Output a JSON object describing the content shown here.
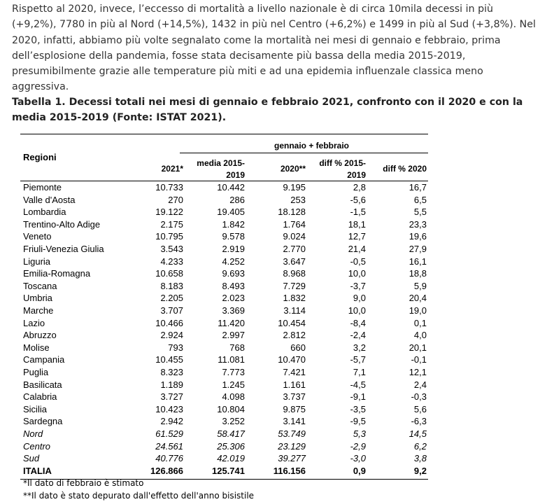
{
  "paragraph": "Rispetto al 2020, invece, l’eccesso di mortalità a livello nazionale è di circa 10mila decessi in più (+9,2%), 7780 in più al Nord (+14,5%), 1432 in più nel Centro (+6,2%) e 1499 in più al Sud (+3,8%). Nel 2020, infatti, abbiamo più volte segnalato come la mortalità nei mesi di gennaio e febbraio, prima dell’esplosione della pandemia, fosse stata decisamente più bassa della media 2015-2019, presumibilmente grazie alle temperature più miti e ad una epidemia influenzale classica meno aggressiva.",
  "caption": "Tabella 1. Decessi totali nei mesi di gennaio e febbraio 2021, confronto con il 2020 e con la media 2015-2019 (Fonte: ISTAT 2021).",
  "table": {
    "group_header": "gennaio + febbraio",
    "header": [
      "Regioni",
      "2021*",
      "media 2015-2019",
      "2020**",
      "diff % 2015-2019",
      "diff % 2020"
    ],
    "rows": [
      [
        "Piemonte",
        "10.733",
        "10.442",
        "9.195",
        "2,8",
        "16,7"
      ],
      [
        "Valle d'Aosta",
        "270",
        "286",
        "253",
        "-5,6",
        "6,5"
      ],
      [
        "Lombardia",
        "19.122",
        "19.405",
        "18.128",
        "-1,5",
        "5,5"
      ],
      [
        "Trentino-Alto Adige",
        "2.175",
        "1.842",
        "1.764",
        "18,1",
        "23,3"
      ],
      [
        "Veneto",
        "10.795",
        "9.578",
        "9.024",
        "12,7",
        "19,6"
      ],
      [
        "Friuli-Venezia Giulia",
        "3.543",
        "2.919",
        "2.770",
        "21,4",
        "27,9"
      ],
      [
        "Liguria",
        "4.233",
        "4.252",
        "3.647",
        "-0,5",
        "16,1"
      ],
      [
        "Emilia-Romagna",
        "10.658",
        "9.693",
        "8.968",
        "10,0",
        "18,8"
      ],
      [
        "Toscana",
        "8.183",
        "8.493",
        "7.729",
        "-3,7",
        "5,9"
      ],
      [
        "Umbria",
        "2.205",
        "2.023",
        "1.832",
        "9,0",
        "20,4"
      ],
      [
        "Marche",
        "3.707",
        "3.369",
        "3.114",
        "10,0",
        "19,0"
      ],
      [
        "Lazio",
        "10.466",
        "11.420",
        "10.454",
        "-8,4",
        "0,1"
      ],
      [
        "Abruzzo",
        "2.924",
        "2.997",
        "2.812",
        "-2,4",
        "4,0"
      ],
      [
        "Molise",
        "793",
        "768",
        "660",
        "3,2",
        "20,1"
      ],
      [
        "Campania",
        "10.455",
        "11.081",
        "10.470",
        "-5,7",
        "-0,1"
      ],
      [
        "Puglia",
        "8.323",
        "7.773",
        "7.421",
        "7,1",
        "12,1"
      ],
      [
        "Basilicata",
        "1.189",
        "1.245",
        "1.161",
        "-4,5",
        "2,4"
      ],
      [
        "Calabria",
        "3.727",
        "4.098",
        "3.737",
        "-9,1",
        "-0,3"
      ],
      [
        "Sicilia",
        "10.423",
        "10.804",
        "9.875",
        "-3,5",
        "5,6"
      ],
      [
        "Sardegna",
        "2.942",
        "3.252",
        "3.141",
        "-9,5",
        "-6,3"
      ],
      [
        "Nord",
        "61.529",
        "58.417",
        "53.749",
        "5,3",
        "14,5"
      ],
      [
        "Centro",
        "24.561",
        "25.306",
        "23.129",
        "-2,9",
        "6,2"
      ],
      [
        "Sud",
        "40.776",
        "42.019",
        "39.277",
        "-3,0",
        "3,8"
      ],
      [
        "ITALIA",
        "126.866",
        "125.741",
        "116.156",
        "0,9",
        "9,2"
      ]
    ]
  },
  "footnotes": [
    "*Il dato di febbraio è stimato",
    "**Il dato è stato depurato dall'effetto dell'anno bisistile"
  ]
}
